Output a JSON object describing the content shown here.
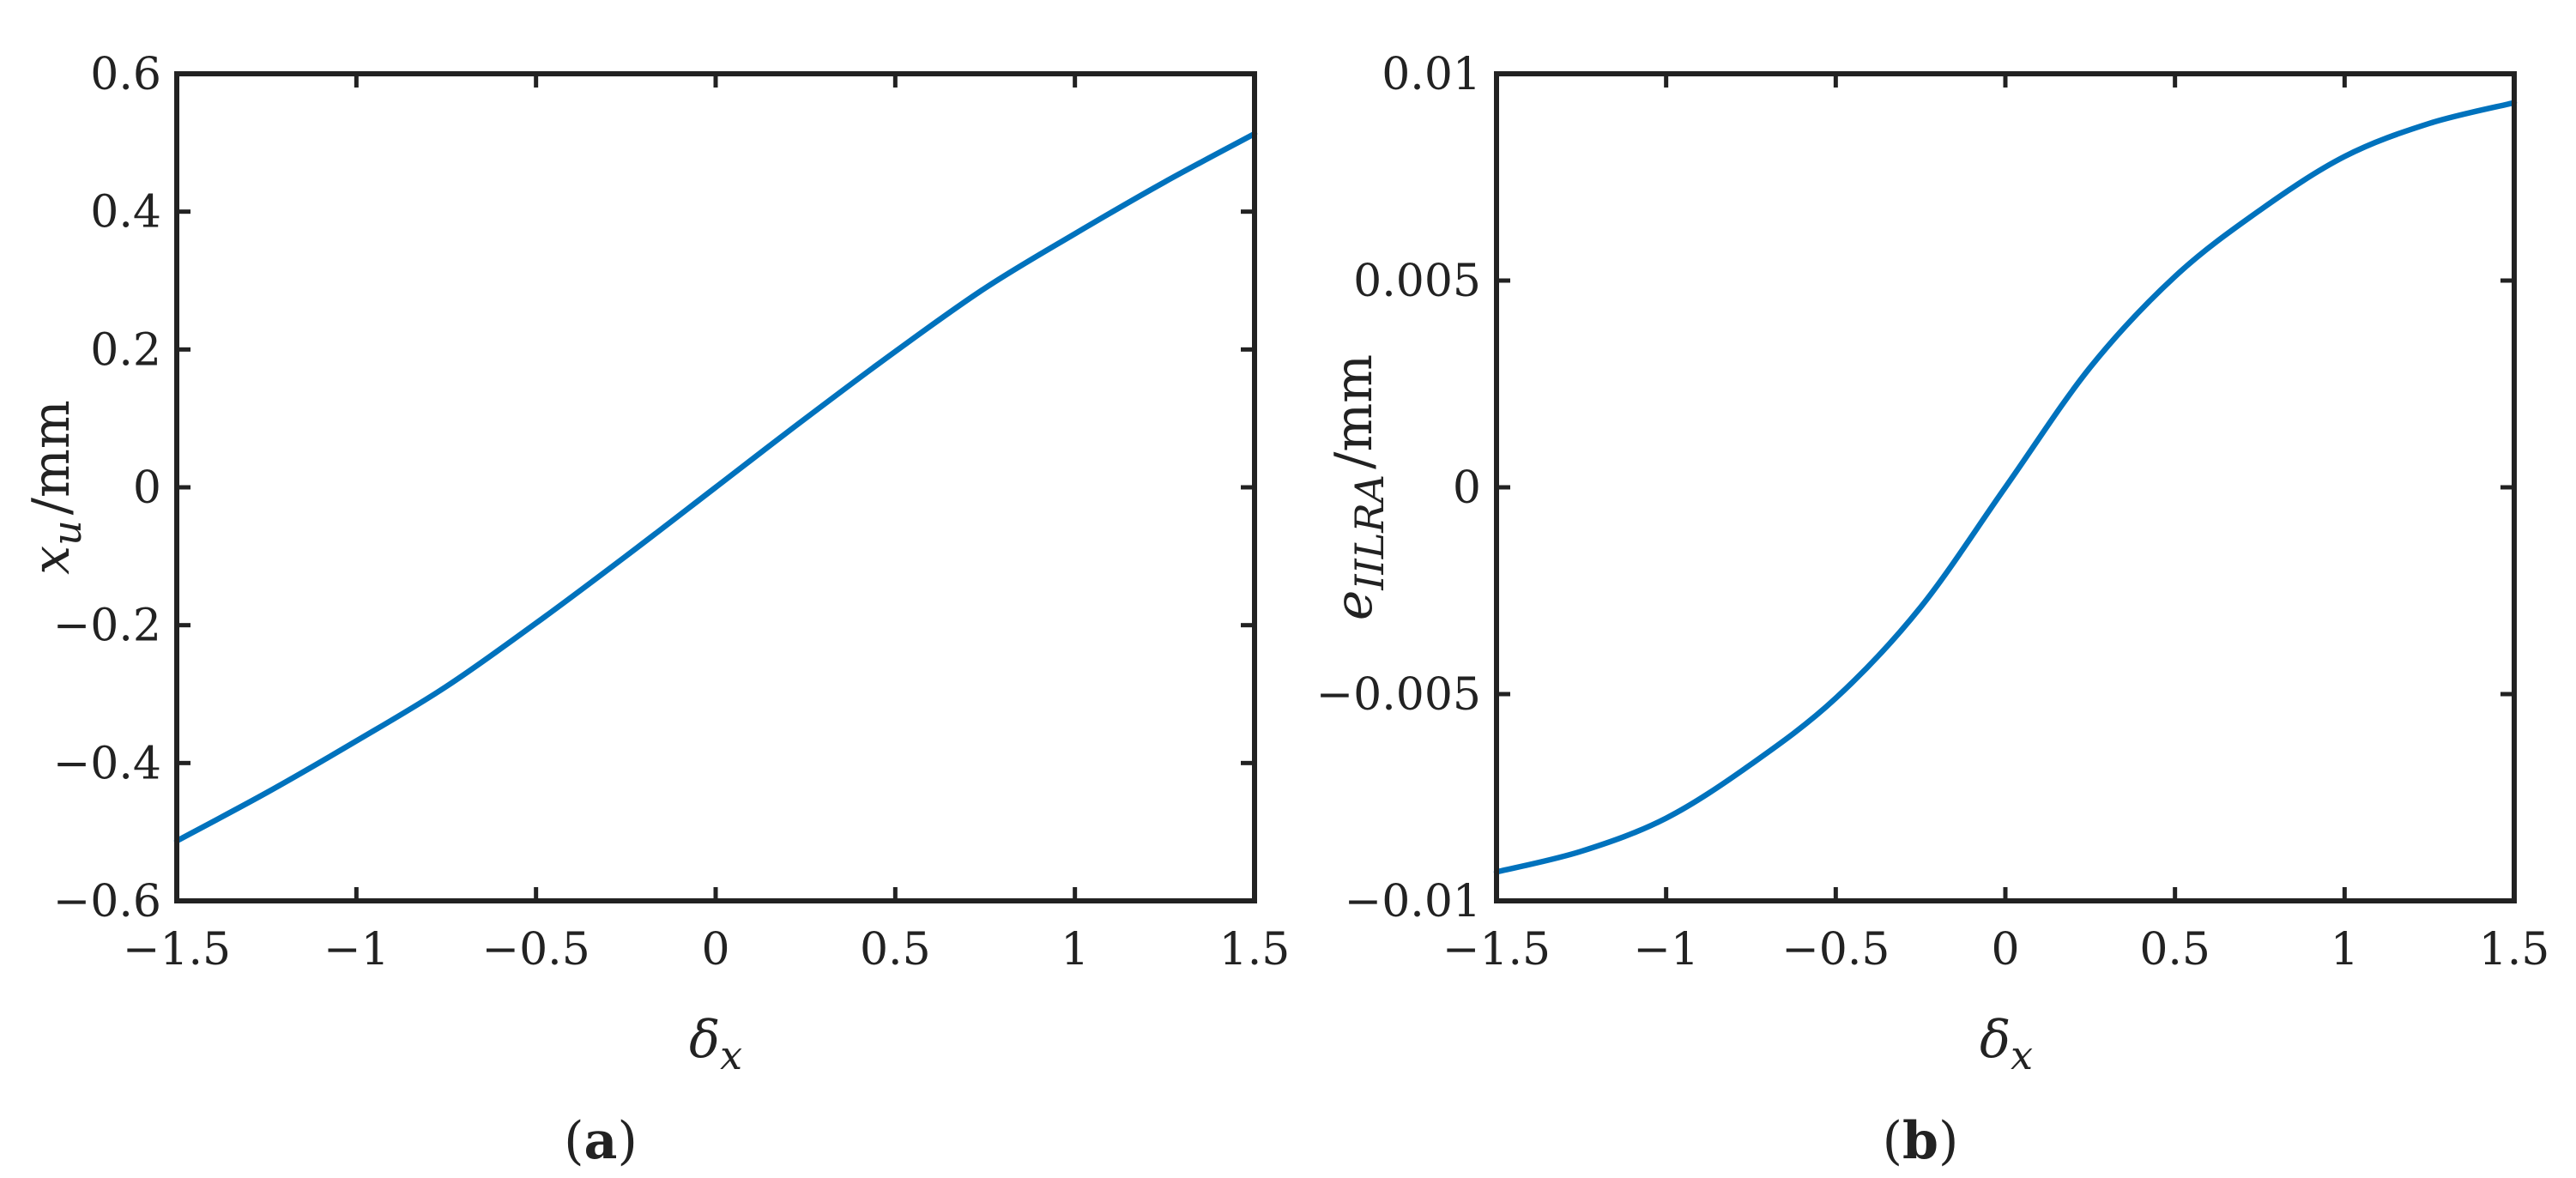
{
  "colors": {
    "series": "#0072bd",
    "axes": "#222222"
  },
  "chart_data": [
    {
      "type": "line",
      "panel_label": {
        "open": "(",
        "letter": "a",
        "close": ")"
      },
      "xlabel": {
        "symbol": "δ",
        "subscript": "x"
      },
      "ylabel": {
        "symbol": "x",
        "subscript": "u",
        "unit": "/mm"
      },
      "xlim": [
        -1.5,
        1.5
      ],
      "ylim": [
        -0.6,
        0.6
      ],
      "xticks": [
        -1.5,
        -1,
        -0.5,
        0,
        0.5,
        1,
        1.5
      ],
      "xtick_labels": [
        "−1.5",
        "−1",
        "−0.5",
        "0",
        "0.5",
        "1",
        "1.5"
      ],
      "yticks": [
        -0.6,
        -0.4,
        -0.2,
        0,
        0.2,
        0.4,
        0.6
      ],
      "ytick_labels": [
        "−0.6",
        "−0.4",
        "−0.2",
        "0",
        "0.2",
        "0.4",
        "0.6"
      ],
      "series": [
        {
          "x": [
            -1.5,
            -1.25,
            -1.0,
            -0.75,
            -0.5,
            -0.25,
            0,
            0.25,
            0.5,
            0.75,
            1.0,
            1.25,
            1.5
          ],
          "y": [
            -0.513,
            -0.443,
            -0.368,
            -0.289,
            -0.197,
            -0.1,
            0,
            0.1,
            0.197,
            0.289,
            0.368,
            0.443,
            0.513
          ]
        }
      ]
    },
    {
      "type": "line",
      "panel_label": {
        "open": "(",
        "letter": "b",
        "close": ")"
      },
      "xlabel": {
        "symbol": "δ",
        "subscript": "x"
      },
      "ylabel": {
        "symbol": "e",
        "subscript": "IILRA",
        "unit": "/mm"
      },
      "xlim": [
        -1.5,
        1.5
      ],
      "ylim": [
        -0.01,
        0.01
      ],
      "xticks": [
        -1.5,
        -1,
        -0.5,
        0,
        0.5,
        1,
        1.5
      ],
      "xtick_labels": [
        "−1.5",
        "−1",
        "−0.5",
        "0",
        "0.5",
        "1",
        "1.5"
      ],
      "yticks": [
        -0.01,
        -0.005,
        0,
        0.005,
        0.01
      ],
      "ytick_labels": [
        "−0.01",
        "−0.005",
        "0",
        "0.005",
        "0.01"
      ],
      "series": [
        {
          "x": [
            -1.5,
            -1.25,
            -1.0,
            -0.75,
            -0.5,
            -0.25,
            0,
            0.25,
            0.5,
            0.75,
            1.0,
            1.25,
            1.5
          ],
          "y": [
            -0.0093,
            -0.0088,
            -0.008,
            -0.0067,
            -0.0051,
            -0.0029,
            0,
            0.0029,
            0.0051,
            0.0067,
            0.008,
            0.0088,
            0.0093
          ]
        }
      ]
    }
  ]
}
